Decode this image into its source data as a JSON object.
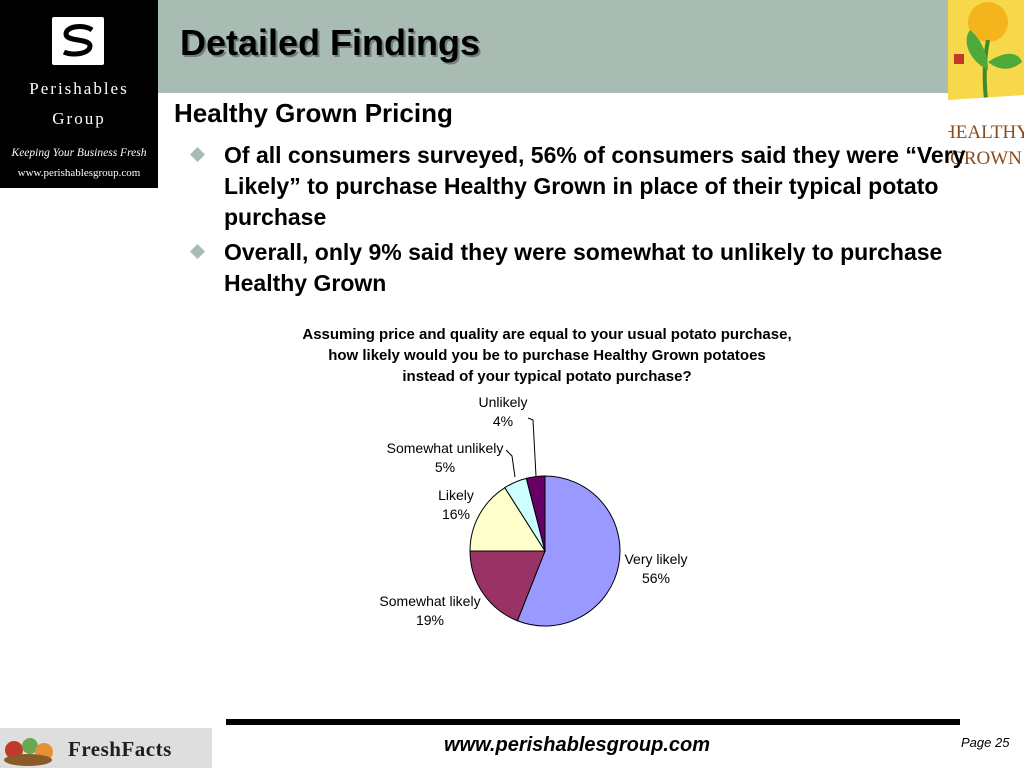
{
  "header": {
    "title": "Detailed Findings",
    "logo": {
      "name_line1": "Perishables",
      "name_line2": "Group",
      "tagline": "Keeping Your Business Fresh",
      "url": "www.perishablesgroup.com"
    },
    "brand_logo": {
      "text_line1": "HEALTHY",
      "text_line2": "GROWN"
    }
  },
  "main": {
    "heading": "Healthy Grown Pricing",
    "bullets": [
      "Of all consumers surveyed, 56% of consumers said they were “Very Likely” to purchase Healthy Grown in place of their typical potato purchase",
      "Overall, only 9% said they were somewhat to unlikely to purchase Healthy Grown"
    ]
  },
  "chart_data": {
    "type": "pie",
    "title": "Assuming price and quality are equal to your usual potato purchase, how likely would you be to purchase Healthy Grown potatoes instead of your typical potato purchase?",
    "slices": [
      {
        "label": "Very likely",
        "value": 56,
        "value_label": "56%",
        "color": "#9999ff"
      },
      {
        "label": "Somewhat likely",
        "value": 19,
        "value_label": "19%",
        "color": "#993366"
      },
      {
        "label": "Likely",
        "value": 16,
        "value_label": "16%",
        "color": "#ffffcc"
      },
      {
        "label": "Somewhat unlikely",
        "value": 5,
        "value_label": "5%",
        "color": "#ccffff"
      },
      {
        "label": "Unlikely",
        "value": 4,
        "value_label": "4%",
        "color": "#660066"
      }
    ]
  },
  "footer": {
    "logo_text": "FreshFacts",
    "url": "www.perishablesgroup.com",
    "page": "Page 25"
  },
  "colors": {
    "title_band": "#a9bcb3",
    "bullet": "#a9bcb3"
  }
}
